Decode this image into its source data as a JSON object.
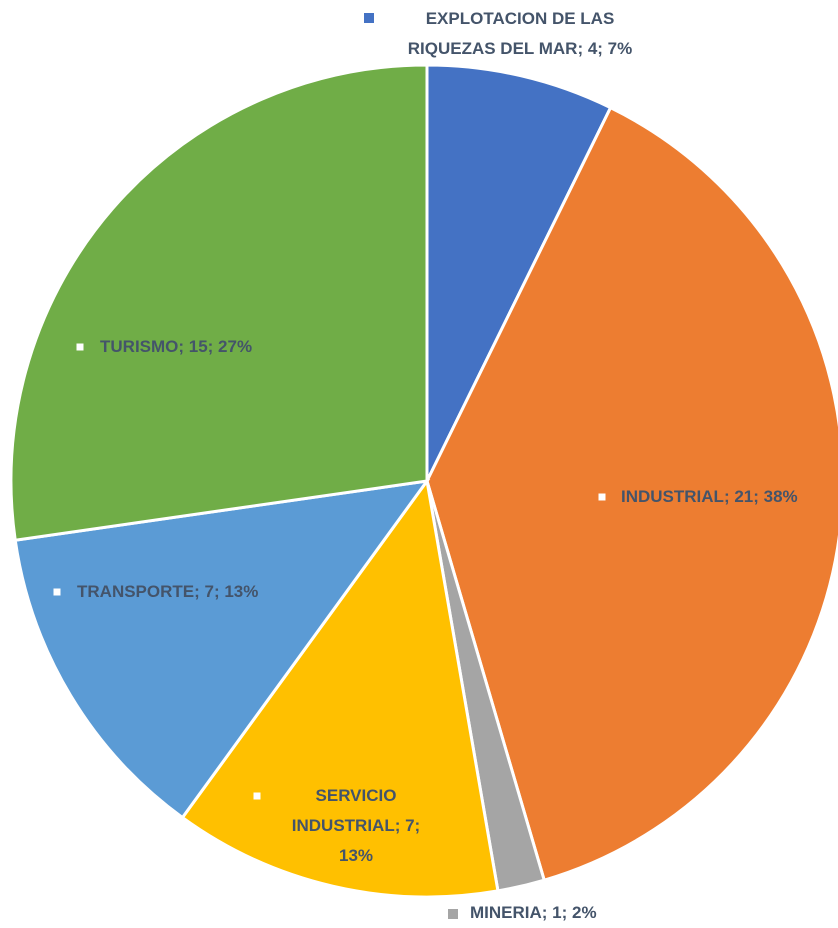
{
  "chart_data": {
    "type": "pie",
    "values": [
      4,
      21,
      1,
      7,
      7,
      15
    ],
    "value_labels": [
      "EXPLOTACION DE LAS RIQUEZAS DEL MAR; 4; 7%",
      "INDUSTRIAL; 21; 38%",
      "MINERIA; 1; 2%",
      "SERVICIO INDUSTRIAL; 7; 13%",
      "TRANSPORTE; 7; 13%",
      "TURISMO; 15; 27%"
    ],
    "colors": [
      "#4472c4",
      "#ed7d31",
      "#a5a5a5",
      "#ffc000",
      "#5b9bd5",
      "#70ad47"
    ]
  }
}
